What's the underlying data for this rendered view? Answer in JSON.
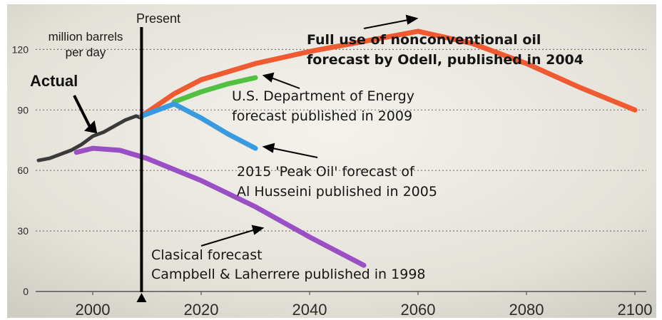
{
  "chart_data": {
    "type": "line",
    "title": "",
    "ylabel_line1": "million barrels",
    "ylabel_line2": "per day",
    "xlim": [
      1990,
      2100
    ],
    "ylim": [
      0,
      125
    ],
    "x_ticks": [
      2000,
      2020,
      2040,
      2060,
      2080,
      2100
    ],
    "y_ticks": [
      0,
      30,
      60,
      90,
      120
    ],
    "grid": "horizontal dotted",
    "present": {
      "x": 2009,
      "label": "Present"
    },
    "series": [
      {
        "key": "actual",
        "color": "#3a3a3a",
        "points": [
          [
            1990,
            65
          ],
          [
            1992,
            66
          ],
          [
            1994,
            68
          ],
          [
            1996,
            70
          ],
          [
            1998,
            73
          ],
          [
            2000,
            77
          ],
          [
            2002,
            79
          ],
          [
            2004,
            82
          ],
          [
            2006,
            85
          ],
          [
            2008,
            87
          ],
          [
            2009,
            86
          ]
        ]
      },
      {
        "key": "odell",
        "color": "#f05a30",
        "points": [
          [
            2009,
            87
          ],
          [
            2015,
            98
          ],
          [
            2020,
            105
          ],
          [
            2030,
            113
          ],
          [
            2040,
            119
          ],
          [
            2050,
            124
          ],
          [
            2060,
            129
          ],
          [
            2070,
            123
          ],
          [
            2080,
            113
          ],
          [
            2090,
            101
          ],
          [
            2100,
            90
          ]
        ]
      },
      {
        "key": "doe",
        "color": "#52c040",
        "points": [
          [
            2015,
            94
          ],
          [
            2020,
            99
          ],
          [
            2025,
            103
          ],
          [
            2030,
            106
          ]
        ]
      },
      {
        "key": "alhusseini",
        "color": "#3a9ae0",
        "points": [
          [
            2009,
            87
          ],
          [
            2015,
            93
          ],
          [
            2020,
            86
          ],
          [
            2025,
            78
          ],
          [
            2030,
            71
          ]
        ]
      },
      {
        "key": "campbell",
        "color": "#9b4fc4",
        "points": [
          [
            1997,
            69
          ],
          [
            2000,
            71
          ],
          [
            2005,
            70
          ],
          [
            2010,
            66
          ],
          [
            2020,
            55
          ],
          [
            2030,
            42
          ],
          [
            2040,
            27
          ],
          [
            2050,
            13
          ]
        ]
      }
    ],
    "annotations": {
      "actual": "Actual",
      "odell_line1": "Full use of nonconventional oil",
      "odell_line2": "forecast by Odell, published in 2004",
      "doe_line1": "U.S. Department of Energy",
      "doe_line2": "forecast published in 2009",
      "alhusseini_line1": "2015 'Peak Oil' forecast of",
      "alhusseini_line2": "Al Husseini published in 2005",
      "campbell_line1": "Clasical forecast",
      "campbell_line2": "Campbell & Laherrere published in 1998"
    }
  }
}
